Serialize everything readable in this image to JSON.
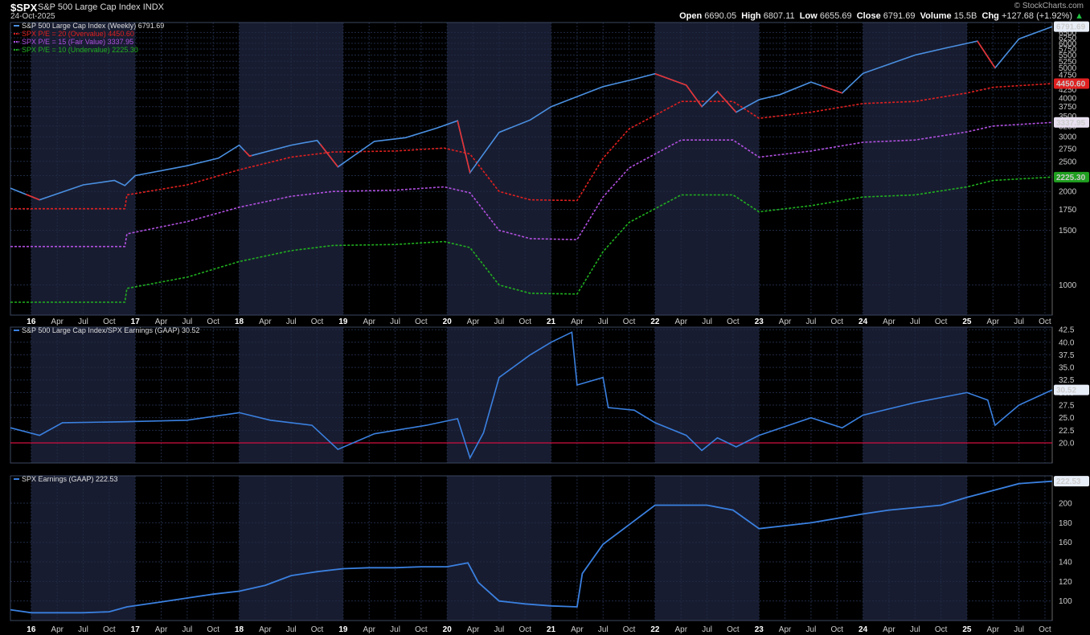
{
  "header": {
    "symbol": "$SPX",
    "name": "S&P 500 Large Cap Index",
    "exchange": "INDX",
    "date": "24-Oct-2025",
    "brand": "© StockCharts.com",
    "open_label": "Open",
    "open": "6690.05",
    "high_label": "High",
    "high": "6807.11",
    "low_label": "Low",
    "low": "6655.69",
    "close_label": "Close",
    "close": "6791.69",
    "volume_label": "Volume",
    "volume": "15.5B",
    "chg_label": "Chg",
    "chg": "+127.68 (+1.92%)"
  },
  "colors": {
    "price_up": "#4a90e2",
    "price_down": "#e83030",
    "pe20": "#e02020",
    "pe15": "#b050e0",
    "pe10": "#20b020",
    "ratio": "#3a80e0",
    "earnings": "#3a80e0",
    "refline": "#d01040",
    "band": "#181c30",
    "grid": "#1e2a44"
  },
  "chart_data": [
    {
      "type": "line",
      "panel": "price",
      "legend": [
        "S&P 500 Large Cap Index (Weekly) 6791.69",
        "SPX P/E = 20 (Overvalue) 4450.60",
        "SPX P/E = 15 (Fair Value) 3337.95",
        "SPX P/E = 10 (Undervalue) 2225.30"
      ],
      "y_ticks": [
        1000,
        1500,
        1750,
        2000,
        2250,
        2500,
        2750,
        3000,
        3250,
        3500,
        3750,
        4000,
        4250,
        4500,
        4750,
        5000,
        5250,
        5500,
        5750,
        6000,
        6250,
        6500
      ],
      "y_tick_labels": [
        "1000",
        "1500",
        "1750",
        "2000",
        "2250",
        "2500",
        "2750",
        "3000",
        "3250",
        "3500",
        "3750",
        "4000",
        "4250",
        "4500",
        "4750",
        "5000",
        "5250",
        "5500",
        "5750",
        "6000",
        "6250",
        "6500"
      ],
      "last_labels": [
        "6791.69",
        "4450.60",
        "3337.95",
        "2225.30"
      ],
      "series": [
        {
          "values": [
            [
              2015.8,
              2050
            ],
            [
              2016.08,
              1880
            ],
            [
              2016.5,
              2100
            ],
            [
              2016.8,
              2170
            ],
            [
              2016.9,
              2090
            ],
            [
              2017.0,
              2250
            ],
            [
              2017.5,
              2420
            ],
            [
              2017.8,
              2560
            ],
            [
              2018.0,
              2820
            ],
            [
              2018.1,
              2600
            ],
            [
              2018.5,
              2820
            ],
            [
              2018.75,
              2920
            ],
            [
              2018.95,
              2400
            ],
            [
              2019.3,
              2900
            ],
            [
              2019.6,
              2980
            ],
            [
              2019.9,
              3200
            ],
            [
              2020.1,
              3380
            ],
            [
              2020.22,
              2300
            ],
            [
              2020.5,
              3100
            ],
            [
              2020.8,
              3400
            ],
            [
              2021.0,
              3750
            ],
            [
              2021.5,
              4350
            ],
            [
              2021.8,
              4600
            ],
            [
              2022.0,
              4790
            ],
            [
              2022.3,
              4400
            ],
            [
              2022.45,
              3750
            ],
            [
              2022.6,
              4200
            ],
            [
              2022.78,
              3600
            ],
            [
              2023.0,
              3950
            ],
            [
              2023.2,
              4100
            ],
            [
              2023.5,
              4500
            ],
            [
              2023.8,
              4150
            ],
            [
              2024.0,
              4800
            ],
            [
              2024.5,
              5500
            ],
            [
              2024.8,
              5800
            ],
            [
              2025.1,
              6100
            ],
            [
              2025.27,
              5000
            ],
            [
              2025.5,
              6200
            ],
            [
              2025.82,
              6791.69
            ]
          ],
          "down_segments": [
            [
              2015.95,
              2016.08
            ],
            [
              2018.05,
              2018.12
            ],
            [
              2018.78,
              2018.95
            ],
            [
              2020.1,
              2020.22
            ],
            [
              2022.0,
              2022.45
            ],
            [
              2022.6,
              2022.78
            ],
            [
              2023.6,
              2023.8
            ],
            [
              2025.1,
              2025.27
            ]
          ]
        },
        {
          "values": [
            [
              2015.8,
              1760
            ],
            [
              2016.9,
              1760
            ],
            [
              2016.92,
              1950
            ],
            [
              2017.5,
              2100
            ],
            [
              2018.0,
              2350
            ],
            [
              2018.5,
              2580
            ],
            [
              2018.9,
              2680
            ],
            [
              2019.5,
              2700
            ],
            [
              2019.97,
              2760
            ],
            [
              2020.22,
              2640
            ],
            [
              2020.5,
              2000
            ],
            [
              2020.8,
              1880
            ],
            [
              2021.25,
              1870
            ],
            [
              2021.5,
              2560
            ],
            [
              2021.75,
              3180
            ],
            [
              2022.0,
              3520
            ],
            [
              2022.25,
              3900
            ],
            [
              2022.75,
              3900
            ],
            [
              2023.0,
              3440
            ],
            [
              2023.5,
              3600
            ],
            [
              2024.0,
              3840
            ],
            [
              2024.5,
              3900
            ],
            [
              2025.0,
              4150
            ],
            [
              2025.25,
              4330
            ],
            [
              2025.82,
              4450.6
            ]
          ]
        },
        {
          "values": [
            [
              2015.8,
              1330
            ],
            [
              2016.9,
              1330
            ],
            [
              2016.92,
              1460
            ],
            [
              2017.5,
              1600
            ],
            [
              2018.0,
              1780
            ],
            [
              2018.5,
              1930
            ],
            [
              2018.9,
              2000
            ],
            [
              2019.5,
              2020
            ],
            [
              2019.97,
              2070
            ],
            [
              2020.22,
              1980
            ],
            [
              2020.5,
              1500
            ],
            [
              2020.8,
              1410
            ],
            [
              2021.25,
              1400
            ],
            [
              2021.5,
              1920
            ],
            [
              2021.75,
              2380
            ],
            [
              2022.0,
              2640
            ],
            [
              2022.25,
              2930
            ],
            [
              2022.75,
              2930
            ],
            [
              2023.0,
              2580
            ],
            [
              2023.5,
              2700
            ],
            [
              2024.0,
              2880
            ],
            [
              2024.5,
              2930
            ],
            [
              2025.0,
              3110
            ],
            [
              2025.25,
              3250
            ],
            [
              2025.82,
              3337.95
            ]
          ]
        },
        {
          "values": [
            [
              2015.8,
              880
            ],
            [
              2016.9,
              880
            ],
            [
              2016.92,
              975
            ],
            [
              2017.5,
              1060
            ],
            [
              2018.0,
              1190
            ],
            [
              2018.5,
              1290
            ],
            [
              2018.9,
              1340
            ],
            [
              2019.5,
              1350
            ],
            [
              2019.97,
              1380
            ],
            [
              2020.22,
              1320
            ],
            [
              2020.5,
              1000
            ],
            [
              2020.8,
              940
            ],
            [
              2021.25,
              935
            ],
            [
              2021.5,
              1280
            ],
            [
              2021.75,
              1590
            ],
            [
              2022.0,
              1760
            ],
            [
              2022.25,
              1950
            ],
            [
              2022.75,
              1950
            ],
            [
              2023.0,
              1720
            ],
            [
              2023.5,
              1800
            ],
            [
              2024.0,
              1920
            ],
            [
              2024.5,
              1950
            ],
            [
              2025.0,
              2070
            ],
            [
              2025.25,
              2170
            ],
            [
              2025.82,
              2225.3
            ]
          ]
        }
      ]
    },
    {
      "type": "line",
      "panel": "ratio",
      "legend": [
        "S&P 500 Large Cap Index/SPX Earnings (GAAP) 30.52"
      ],
      "y_ticks": [
        20,
        22.5,
        25,
        27.5,
        30,
        32.5,
        35,
        37.5,
        40,
        42.5
      ],
      "y_tick_labels": [
        "20.0",
        "22.5",
        "25.0",
        "27.5",
        "30.0",
        "32.5",
        "35.0",
        "37.5",
        "40.0",
        "42.5"
      ],
      "last_label": "30.52",
      "reference_line": 20,
      "series": [
        {
          "values": [
            [
              2015.8,
              23.0
            ],
            [
              2016.08,
              21.5
            ],
            [
              2016.3,
              24.0
            ],
            [
              2016.9,
              24.2
            ],
            [
              2017.5,
              24.5
            ],
            [
              2018.0,
              26.0
            ],
            [
              2018.3,
              24.5
            ],
            [
              2018.7,
              23.5
            ],
            [
              2018.95,
              18.7
            ],
            [
              2019.3,
              21.8
            ],
            [
              2019.8,
              23.5
            ],
            [
              2020.1,
              24.8
            ],
            [
              2020.22,
              17.0
            ],
            [
              2020.35,
              22.0
            ],
            [
              2020.5,
              33.0
            ],
            [
              2020.8,
              37.5
            ],
            [
              2021.0,
              40.0
            ],
            [
              2021.2,
              42.0
            ],
            [
              2021.25,
              31.5
            ],
            [
              2021.5,
              33.0
            ],
            [
              2021.55,
              27.0
            ],
            [
              2021.8,
              26.5
            ],
            [
              2022.0,
              24.0
            ],
            [
              2022.3,
              21.5
            ],
            [
              2022.45,
              18.5
            ],
            [
              2022.6,
              21.0
            ],
            [
              2022.78,
              19.2
            ],
            [
              2023.0,
              21.5
            ],
            [
              2023.5,
              25.0
            ],
            [
              2023.8,
              23.0
            ],
            [
              2024.0,
              25.5
            ],
            [
              2024.5,
              28.0
            ],
            [
              2025.0,
              30.0
            ],
            [
              2025.2,
              28.5
            ],
            [
              2025.27,
              23.5
            ],
            [
              2025.5,
              27.5
            ],
            [
              2025.82,
              30.52
            ]
          ]
        }
      ]
    },
    {
      "type": "line",
      "panel": "earnings",
      "legend": [
        "SPX Earnings (GAAP) 222.53"
      ],
      "y_ticks": [
        100,
        120,
        140,
        160,
        180,
        200
      ],
      "y_tick_labels": [
        "100",
        "120",
        "140",
        "160",
        "180",
        "200"
      ],
      "last_label": "222.53",
      "series": [
        {
          "values": [
            [
              2015.8,
              91
            ],
            [
              2016.0,
              88
            ],
            [
              2016.5,
              88
            ],
            [
              2016.75,
              89
            ],
            [
              2016.92,
              94
            ],
            [
              2017.25,
              99
            ],
            [
              2017.5,
              103
            ],
            [
              2017.75,
              107
            ],
            [
              2018.0,
              110
            ],
            [
              2018.25,
              116
            ],
            [
              2018.5,
              126
            ],
            [
              2018.75,
              130
            ],
            [
              2019.0,
              133
            ],
            [
              2019.25,
              134
            ],
            [
              2019.5,
              134
            ],
            [
              2019.75,
              135
            ],
            [
              2020.0,
              135
            ],
            [
              2020.2,
              139
            ],
            [
              2020.3,
              119
            ],
            [
              2020.5,
              100
            ],
            [
              2020.75,
              97
            ],
            [
              2021.0,
              95
            ],
            [
              2021.25,
              94
            ],
            [
              2021.3,
              128
            ],
            [
              2021.5,
              158
            ],
            [
              2021.75,
              178
            ],
            [
              2022.0,
              198
            ],
            [
              2022.5,
              198
            ],
            [
              2022.75,
              193
            ],
            [
              2023.0,
              174
            ],
            [
              2023.5,
              180
            ],
            [
              2024.0,
              189
            ],
            [
              2024.25,
              193
            ],
            [
              2024.75,
              198
            ],
            [
              2025.0,
              206
            ],
            [
              2025.25,
              213
            ],
            [
              2025.5,
              220
            ],
            [
              2025.82,
              222.53
            ]
          ]
        }
      ]
    }
  ],
  "x_axis": {
    "ticks": [
      2016.0,
      2016.25,
      2016.5,
      2016.75,
      2017.0,
      2017.25,
      2017.5,
      2017.75,
      2018.0,
      2018.25,
      2018.5,
      2018.75,
      2019.0,
      2019.25,
      2019.5,
      2019.75,
      2020.0,
      2020.25,
      2020.5,
      2020.75,
      2021.0,
      2021.25,
      2021.5,
      2021.75,
      2022.0,
      2022.25,
      2022.5,
      2022.75,
      2023.0,
      2023.25,
      2023.5,
      2023.75,
      2024.0,
      2024.25,
      2024.5,
      2024.75,
      2025.0,
      2025.25,
      2025.5,
      2025.75
    ],
    "labels": [
      "16",
      "Apr",
      "Jul",
      "Oct",
      "17",
      "Apr",
      "Jul",
      "Oct",
      "18",
      "Apr",
      "Jul",
      "Oct",
      "19",
      "Apr",
      "Jul",
      "Oct",
      "20",
      "Apr",
      "Jul",
      "Oct",
      "21",
      "Apr",
      "Jul",
      "Oct",
      "22",
      "Apr",
      "Jul",
      "Oct",
      "23",
      "Apr",
      "Jul",
      "Oct",
      "24",
      "Apr",
      "Jul",
      "Oct",
      "25",
      "Apr",
      "Jul",
      "Oct"
    ]
  }
}
